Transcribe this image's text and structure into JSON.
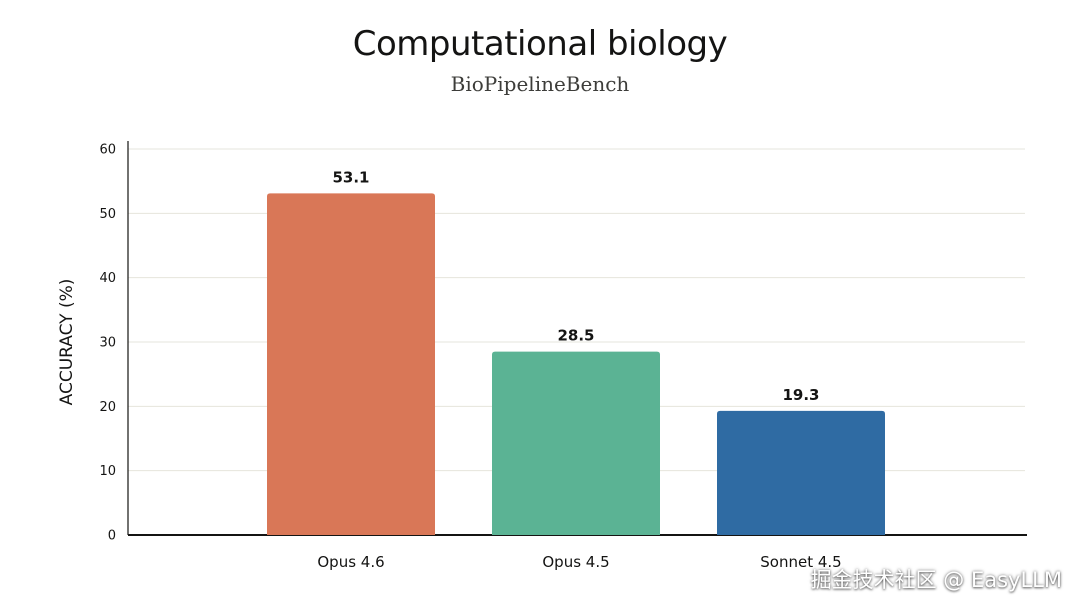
{
  "chart_data": {
    "type": "bar",
    "title": "Computational biology",
    "subtitle": "BioPipelineBench",
    "ylabel": "ACCURACY (%)",
    "xlabel": "",
    "ylim": [
      0,
      60
    ],
    "yticks": [
      0,
      10,
      20,
      30,
      40,
      50,
      60
    ],
    "grid": true,
    "categories": [
      "Opus 4.6",
      "Opus 4.5",
      "Sonnet 4.5"
    ],
    "values": [
      53.1,
      28.5,
      19.3
    ],
    "value_labels": [
      "53.1",
      "28.5",
      "19.3"
    ],
    "colors": [
      "#D97757",
      "#5BB394",
      "#2F6BA3"
    ]
  },
  "watermark": {
    "text": "掘金技术社区 @ EasyLLM"
  }
}
